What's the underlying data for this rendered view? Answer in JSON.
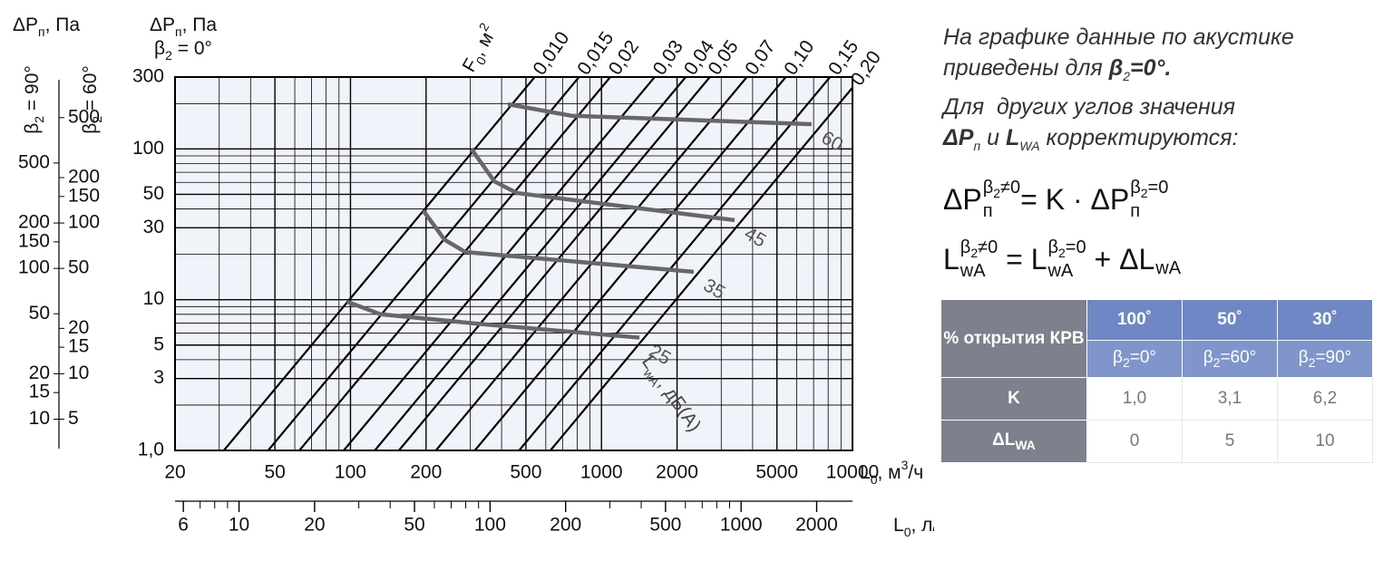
{
  "chart_data": {
    "type": "line",
    "y_title": {
      "base": "ΔP",
      "sub": "п",
      "rest": ", Па"
    },
    "y_subtitle": {
      "base": "β",
      "sub": "2",
      "rest": " = 0°"
    },
    "x_label": {
      "base": "L",
      "sub": "0",
      "rest": ", м",
      "sup": "3",
      "end": "/ч"
    },
    "x2_label": {
      "base": "L",
      "sub": "0",
      "rest": ", л/с"
    },
    "lines_label": {
      "base": "F",
      "sub": "0",
      "rest": ", м",
      "sup": "2"
    },
    "noise_label": {
      "base": "L",
      "sub": "wA",
      "rest": ", дБ(A)"
    },
    "log_x": true,
    "log_y": true,
    "grid": true,
    "xlim": [
      20,
      10000
    ],
    "xticks": [
      20,
      50,
      100,
      200,
      500,
      1000,
      2000,
      5000,
      10000
    ],
    "xgrid": [
      30,
      40,
      60,
      70,
      80,
      90,
      300,
      400,
      600,
      700,
      800,
      900,
      3000,
      4000,
      6000,
      7000,
      8000,
      9000
    ],
    "ylim": [
      1,
      300
    ],
    "yticks": [
      {
        "value": 1,
        "label": "1,0"
      },
      3,
      5,
      10,
      30,
      50,
      100,
      300
    ],
    "ygrid": [
      2,
      4,
      6,
      7,
      8,
      9,
      20,
      40,
      60,
      70,
      80,
      90,
      200
    ],
    "x2lim": [
      5.56,
      2778
    ],
    "x2ticks": [
      6,
      10,
      20,
      50,
      100,
      200,
      500,
      1000,
      2000
    ],
    "x2minor": [
      7,
      8,
      9,
      30,
      40,
      60,
      70,
      80,
      90,
      300,
      400,
      600,
      700,
      800,
      900
    ],
    "left_axes": [
      {
        "label": {
          "base": "β",
          "sub": "2",
          "rest": " = 90°"
        },
        "title": {
          "base": "ΔP",
          "sub": "п",
          "rest": ", Па"
        },
        "ylim": [
          6.2,
          1860
        ],
        "yticks": [
          10,
          15,
          20,
          50,
          100,
          150,
          200,
          500
        ]
      },
      {
        "label": {
          "base": "β",
          "sub": "2",
          "rest": " = 60°"
        },
        "ylim": [
          3.1,
          930
        ],
        "yticks": [
          5,
          10,
          15,
          20,
          50,
          100,
          150,
          200,
          500
        ]
      }
    ],
    "series": [
      {
        "name": "0,010",
        "color": "#000000",
        "x": [
          31.3,
          542
        ],
        "values": [
          1,
          300
        ]
      },
      {
        "name": "0,015",
        "color": "#000000",
        "x": [
          47,
          814
        ],
        "values": [
          1,
          300
        ]
      },
      {
        "name": "0,02",
        "color": "#000000",
        "x": [
          62.6,
          1084
        ],
        "values": [
          1,
          300
        ]
      },
      {
        "name": "0,03",
        "color": "#000000",
        "x": [
          94,
          1628
        ],
        "values": [
          1,
          300
        ]
      },
      {
        "name": "0,04",
        "color": "#000000",
        "x": [
          125,
          2165
        ],
        "values": [
          1,
          300
        ]
      },
      {
        "name": "0,05",
        "color": "#000000",
        "x": [
          156,
          2702
        ],
        "values": [
          1,
          300
        ]
      },
      {
        "name": "0,07",
        "color": "#000000",
        "x": [
          219,
          3793
        ],
        "values": [
          1,
          300
        ]
      },
      {
        "name": "0,10",
        "color": "#000000",
        "x": [
          313,
          5421
        ],
        "values": [
          1,
          300
        ]
      },
      {
        "name": "0,15",
        "color": "#000000",
        "x": [
          470,
          8140
        ],
        "values": [
          1,
          300
        ]
      },
      {
        "name": "0,20",
        "color": "#000000",
        "x": [
          626,
          10000
        ],
        "values": [
          1,
          255
        ]
      }
    ],
    "noise_series": [
      {
        "name": "60",
        "color": "#676767",
        "x": [
          424,
          759,
          6870
        ],
        "values": [
          198,
          166,
          146
        ]
      },
      {
        "name": "45",
        "color": "#676767",
        "x": [
          303,
          374,
          460,
          3390
        ],
        "values": [
          100,
          61,
          51,
          33.7
        ]
      },
      {
        "name": "35",
        "color": "#676767",
        "x": [
          195,
          237,
          287,
          2330
        ],
        "values": [
          39,
          25,
          20.7,
          15.3
        ]
      },
      {
        "name": "25",
        "color": "#676767",
        "x": [
          97,
          132,
          330,
          1416
        ],
        "values": [
          9.7,
          8,
          6.9,
          5.6
        ]
      }
    ]
  },
  "notes": [
    "На графике данные по акустике",
    {
      "a": "приведены для ",
      "b": "β",
      "b_sub": "2",
      "b_rest": "=0°."
    },
    "Для  других углов значения",
    {
      "p1": "ΔP",
      "p1_sub": "п",
      "mid": " и ",
      "p2": "L",
      "p2_sub": "WA",
      "end": " корректируются:"
    }
  ],
  "formulas": [
    {
      "left": {
        "base": "ΔP",
        "sub": "п",
        "sup": [
          "β",
          "2",
          "≠0"
        ]
      },
      "op": "= K · ",
      "right": {
        "base": "ΔP",
        "sub": "п",
        "sup": [
          "β",
          "2",
          "=0"
        ]
      }
    },
    {
      "left": {
        "base": "L",
        "sub": "wA",
        "sup": [
          "β",
          "2",
          "≠0"
        ]
      },
      "op": " = ",
      "right": {
        "base": "L",
        "sub": "wA",
        "sup": [
          "β",
          "2",
          "=0"
        ]
      },
      "tail_op": " + ",
      "tail": {
        "base": "ΔL",
        "sub": "wA"
      }
    }
  ],
  "table": {
    "corner": "% открытия КРВ",
    "columns": [
      {
        "pct": "100˚",
        "angle": "β",
        "angle_sub": "2",
        "angle_rest": "=0°"
      },
      {
        "pct": "50˚",
        "angle": "β",
        "angle_sub": "2",
        "angle_rest": "=60°"
      },
      {
        "pct": "30˚",
        "angle": "β",
        "angle_sub": "2",
        "angle_rest": "=90°"
      }
    ],
    "rows": [
      {
        "name": "K",
        "values": [
          "1,0",
          "3,1",
          "6,2"
        ]
      },
      {
        "name": "ΔL",
        "name_sub": "WA",
        "values": [
          "0",
          "5",
          "10"
        ]
      }
    ]
  }
}
